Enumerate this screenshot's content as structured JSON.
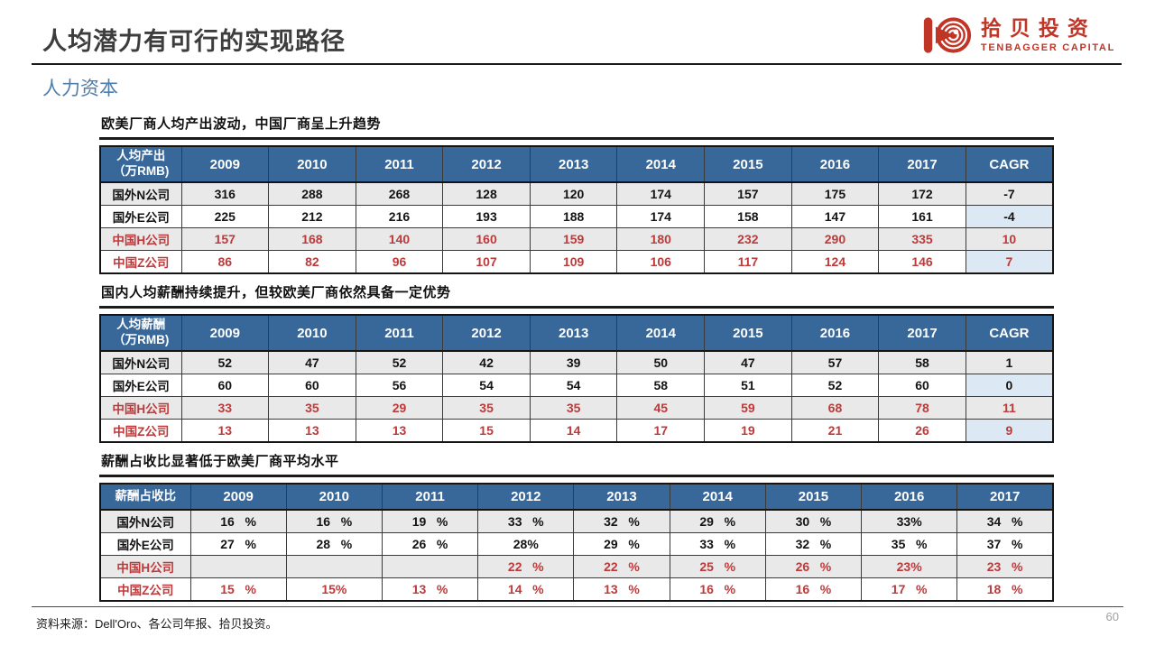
{
  "page": {
    "title": "人均潜力有可行的实现路径",
    "section": "人力资本",
    "source": "资料来源：Dell'Oro、各公司年报、拾贝投资。",
    "page_number": "60"
  },
  "logo": {
    "name_cn": "拾贝投资",
    "name_en": "TENBAGGER CAPITAL"
  },
  "colors": {
    "brand_red": "#C13527",
    "header_blue": "#38689A",
    "cagr_column_blue": "#DCE9F5",
    "stripe_gray": "#E9E9E9",
    "china_row_red": "#BE3A3A",
    "section_title_blue": "#4D7DAD",
    "main_title_gray": "#3D3D3D"
  },
  "tables": [
    {
      "title": "欧美厂商人均产出波动，中国厂商呈上升趋势",
      "corner": "人均产出（万RMB)",
      "years": [
        "2009",
        "2010",
        "2011",
        "2012",
        "2013",
        "2014",
        "2015",
        "2016",
        "2017"
      ],
      "cagr_label": "CAGR",
      "rows": [
        {
          "label": "国外N公司",
          "red": false,
          "values": [
            "316",
            "288",
            "268",
            "128",
            "120",
            "174",
            "157",
            "175",
            "172"
          ],
          "cagr": "-7"
        },
        {
          "label": "国外E公司",
          "red": false,
          "values": [
            "225",
            "212",
            "216",
            "193",
            "188",
            "174",
            "158",
            "147",
            "161"
          ],
          "cagr": "-4"
        },
        {
          "label": "中国H公司",
          "red": true,
          "values": [
            "157",
            "168",
            "140",
            "160",
            "159",
            "180",
            "232",
            "290",
            "335"
          ],
          "cagr": "10"
        },
        {
          "label": "中国Z公司",
          "red": true,
          "values": [
            "86",
            "82",
            "96",
            "107",
            "109",
            "106",
            "117",
            "124",
            "146"
          ],
          "cagr": "7"
        }
      ]
    },
    {
      "title": "国内人均薪酬持续提升，但较欧美厂商依然具备一定优势",
      "corner": "人均薪酬（万RMB)",
      "years": [
        "2009",
        "2010",
        "2011",
        "2012",
        "2013",
        "2014",
        "2015",
        "2016",
        "2017"
      ],
      "cagr_label": "CAGR",
      "rows": [
        {
          "label": "国外N公司",
          "red": false,
          "values": [
            "52",
            "47",
            "52",
            "42",
            "39",
            "50",
            "47",
            "57",
            "58"
          ],
          "cagr": "1"
        },
        {
          "label": "国外E公司",
          "red": false,
          "values": [
            "60",
            "60",
            "56",
            "54",
            "54",
            "58",
            "51",
            "52",
            "60"
          ],
          "cagr": "0"
        },
        {
          "label": "中国H公司",
          "red": true,
          "values": [
            "33",
            "35",
            "29",
            "35",
            "35",
            "45",
            "59",
            "68",
            "78"
          ],
          "cagr": "11"
        },
        {
          "label": "中国Z公司",
          "red": true,
          "values": [
            "13",
            "13",
            "13",
            "15",
            "14",
            "17",
            "19",
            "21",
            "26"
          ],
          "cagr": "9"
        }
      ]
    },
    {
      "title": "薪酬占收比显著低于欧美厂商平均水平",
      "corner": "薪酬占收比",
      "years": [
        "2009",
        "2010",
        "2011",
        "2012",
        "2013",
        "2014",
        "2015",
        "2016",
        "2017"
      ],
      "cagr_label": null,
      "rows": [
        {
          "label": "国外N公司",
          "red": false,
          "values": [
            "16   %",
            "16   %",
            "19   %",
            "33   %",
            "32   %",
            "29   %",
            "30   %",
            "33%",
            "34   %"
          ]
        },
        {
          "label": "国外E公司",
          "red": false,
          "values": [
            "27   %",
            "28   %",
            "26   %",
            "28%",
            "29   %",
            "33   %",
            "32   %",
            "35   %",
            "37   %"
          ]
        },
        {
          "label": "中国H公司",
          "red": true,
          "values": [
            "",
            "",
            "",
            "22   %",
            "22   %",
            "25   %",
            "26   %",
            "23%",
            "23   %"
          ]
        },
        {
          "label": "中国Z公司",
          "red": true,
          "values": [
            "15   %",
            "15%",
            "13   %",
            "14   %",
            "13   %",
            "16   %",
            "16   %",
            "17   %",
            "18   %"
          ]
        }
      ]
    }
  ]
}
